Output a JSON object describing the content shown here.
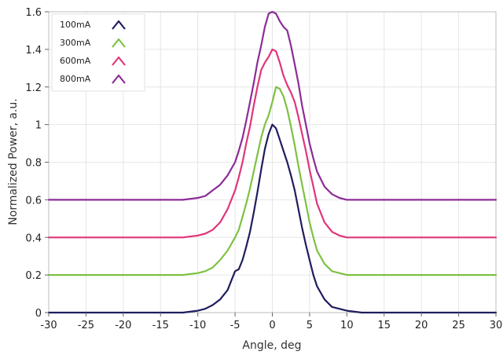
{
  "chart_data": {
    "type": "line",
    "title": "",
    "xlabel": "Angle, deg",
    "ylabel": "Normalized Power, a.u.",
    "xlim": [
      -30,
      30
    ],
    "ylim": [
      0,
      1.6
    ],
    "xticks": [
      -30,
      -25,
      -20,
      -15,
      -10,
      -5,
      0,
      5,
      10,
      15,
      20,
      25,
      30
    ],
    "yticks": [
      0,
      0.2,
      0.4,
      0.6,
      0.8,
      1,
      1.2,
      1.4,
      1.6
    ],
    "xtick_labels": [
      "-30",
      "-25",
      "-20",
      "-15",
      "-10",
      "-5",
      "0",
      "5",
      "10",
      "15",
      "20",
      "25",
      "30"
    ],
    "ytick_labels": [
      "0",
      "0.2",
      "0.4",
      "0.6",
      "0.8",
      "1",
      "1.2",
      "1.4",
      "1.6"
    ],
    "grid": true,
    "legend_position": "top-left",
    "series": [
      {
        "name": "100mA",
        "color": "#1f1d5e",
        "x": [
          -30,
          -12,
          -10,
          -9,
          -8,
          -7,
          -6,
          -5.5,
          -5,
          -4.5,
          -4,
          -3.5,
          -3,
          -2.5,
          -2,
          -1.5,
          -1,
          -0.5,
          0,
          0.5,
          1,
          1.5,
          2,
          2.5,
          3,
          3.5,
          4,
          4.5,
          5,
          5.5,
          6,
          7,
          8,
          9,
          10,
          12,
          30
        ],
        "y": [
          0.0,
          0.0,
          0.01,
          0.02,
          0.04,
          0.07,
          0.12,
          0.17,
          0.22,
          0.23,
          0.28,
          0.35,
          0.43,
          0.53,
          0.64,
          0.76,
          0.87,
          0.95,
          1.0,
          0.98,
          0.92,
          0.86,
          0.8,
          0.73,
          0.65,
          0.55,
          0.45,
          0.36,
          0.28,
          0.2,
          0.14,
          0.07,
          0.03,
          0.02,
          0.01,
          0.0,
          0.0
        ]
      },
      {
        "name": "300mA",
        "color": "#7dc242",
        "x": [
          -30,
          -12,
          -10,
          -9,
          -8,
          -7,
          -6,
          -5,
          -4.5,
          -4,
          -3.5,
          -3,
          -2.5,
          -2,
          -1.5,
          -1,
          -0.5,
          0,
          0.5,
          1,
          1.5,
          2,
          2.5,
          3,
          3.5,
          4,
          4.5,
          5,
          5.5,
          6,
          7,
          8,
          9,
          10,
          12,
          30
        ],
        "y": [
          0.2,
          0.2,
          0.21,
          0.22,
          0.24,
          0.28,
          0.33,
          0.4,
          0.44,
          0.51,
          0.58,
          0.66,
          0.75,
          0.84,
          0.93,
          1.0,
          1.05,
          1.12,
          1.2,
          1.19,
          1.15,
          1.08,
          0.99,
          0.89,
          0.78,
          0.68,
          0.58,
          0.48,
          0.4,
          0.33,
          0.26,
          0.22,
          0.21,
          0.2,
          0.2,
          0.2
        ]
      },
      {
        "name": "600mA",
        "color": "#e0367a",
        "x": [
          -30,
          -12,
          -10,
          -9,
          -8,
          -7,
          -6,
          -5,
          -4.5,
          -4,
          -3.5,
          -3,
          -2.5,
          -2,
          -1.5,
          -1,
          -0.5,
          0,
          0.5,
          1,
          1.5,
          2,
          2.5,
          3,
          3.5,
          4,
          4.5,
          5,
          5.5,
          6,
          7,
          8,
          9,
          10,
          12,
          30
        ],
        "y": [
          0.4,
          0.4,
          0.41,
          0.42,
          0.44,
          0.48,
          0.55,
          0.65,
          0.72,
          0.8,
          0.9,
          0.99,
          1.1,
          1.2,
          1.29,
          1.33,
          1.36,
          1.4,
          1.39,
          1.33,
          1.26,
          1.21,
          1.17,
          1.12,
          1.04,
          0.95,
          0.86,
          0.76,
          0.67,
          0.58,
          0.48,
          0.43,
          0.41,
          0.4,
          0.4,
          0.4
        ]
      },
      {
        "name": "800mA",
        "color": "#8c2c98",
        "x": [
          -30,
          -12,
          -10,
          -9,
          -8,
          -7,
          -6,
          -5,
          -4.5,
          -4,
          -3.5,
          -3,
          -2.5,
          -2,
          -1.5,
          -1,
          -0.5,
          0,
          0.5,
          1,
          1.5,
          2,
          2.5,
          3,
          3.5,
          4,
          4.5,
          5,
          5.5,
          6,
          7,
          8,
          9,
          10,
          12,
          30
        ],
        "y": [
          0.6,
          0.6,
          0.61,
          0.62,
          0.65,
          0.68,
          0.73,
          0.8,
          0.86,
          0.93,
          1.02,
          1.12,
          1.22,
          1.33,
          1.42,
          1.52,
          1.59,
          1.6,
          1.59,
          1.55,
          1.52,
          1.5,
          1.42,
          1.32,
          1.22,
          1.1,
          1.0,
          0.9,
          0.82,
          0.75,
          0.67,
          0.63,
          0.61,
          0.6,
          0.6,
          0.6
        ]
      }
    ]
  }
}
